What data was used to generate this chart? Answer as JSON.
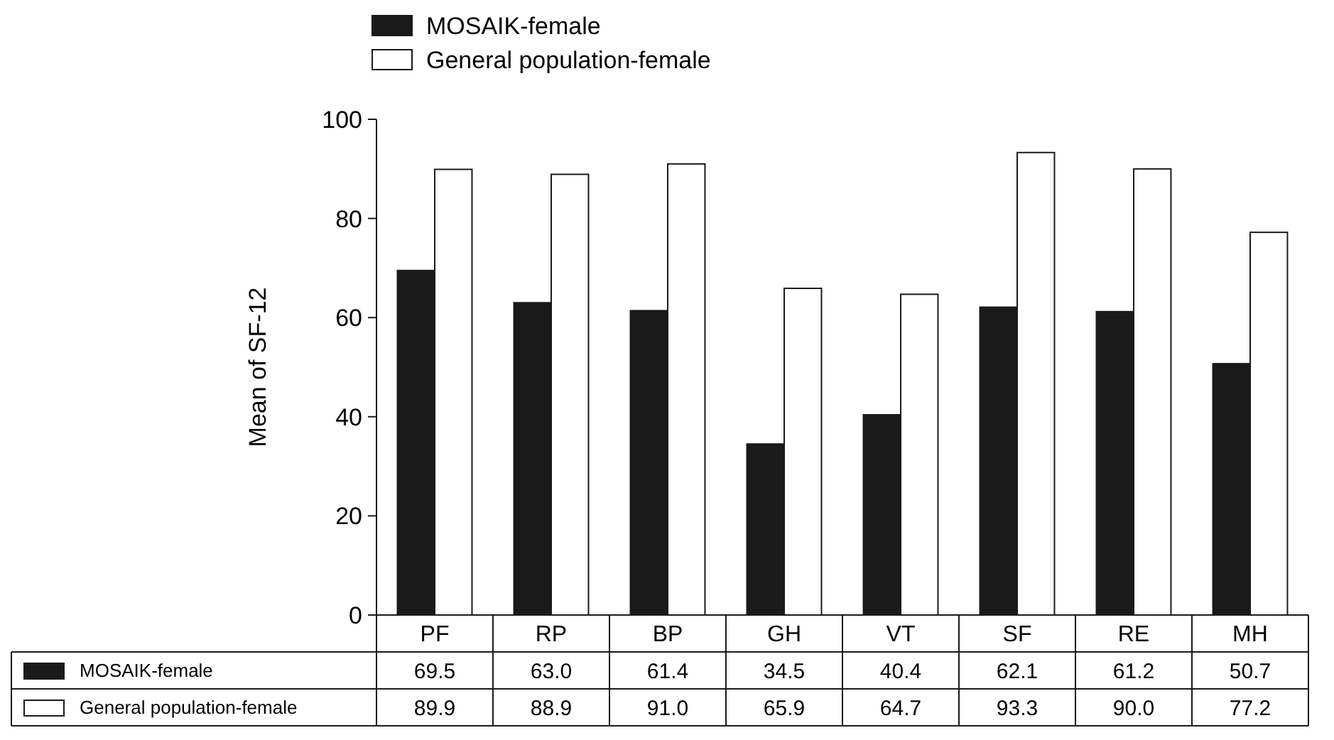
{
  "chart_data": {
    "type": "bar",
    "ylabel": "Mean of SF-12",
    "categories": [
      "PF",
      "RP",
      "BP",
      "GH",
      "VT",
      "SF",
      "RE",
      "MH"
    ],
    "series": [
      {
        "name": "MOSAIK-female",
        "color": "#1a1a1a",
        "values": [
          69.5,
          63.0,
          61.4,
          34.5,
          40.4,
          62.1,
          61.2,
          50.7
        ],
        "value_labels": [
          "69.5",
          "63.0",
          "61.4",
          "34.5",
          "40.4",
          "62.1",
          "61.2",
          "50.7"
        ]
      },
      {
        "name": "General population-female",
        "color": "#ffffff",
        "values": [
          89.9,
          88.9,
          91.0,
          65.9,
          64.7,
          93.3,
          90.0,
          77.2
        ],
        "value_labels": [
          "89.9",
          "88.9",
          "91.0",
          "65.9",
          "64.7",
          "93.3",
          "90.0",
          "77.2"
        ]
      }
    ],
    "ylim": [
      0,
      100
    ],
    "yticks": [
      0,
      20,
      40,
      60,
      80,
      100
    ],
    "legend": "top",
    "grid": false
  }
}
